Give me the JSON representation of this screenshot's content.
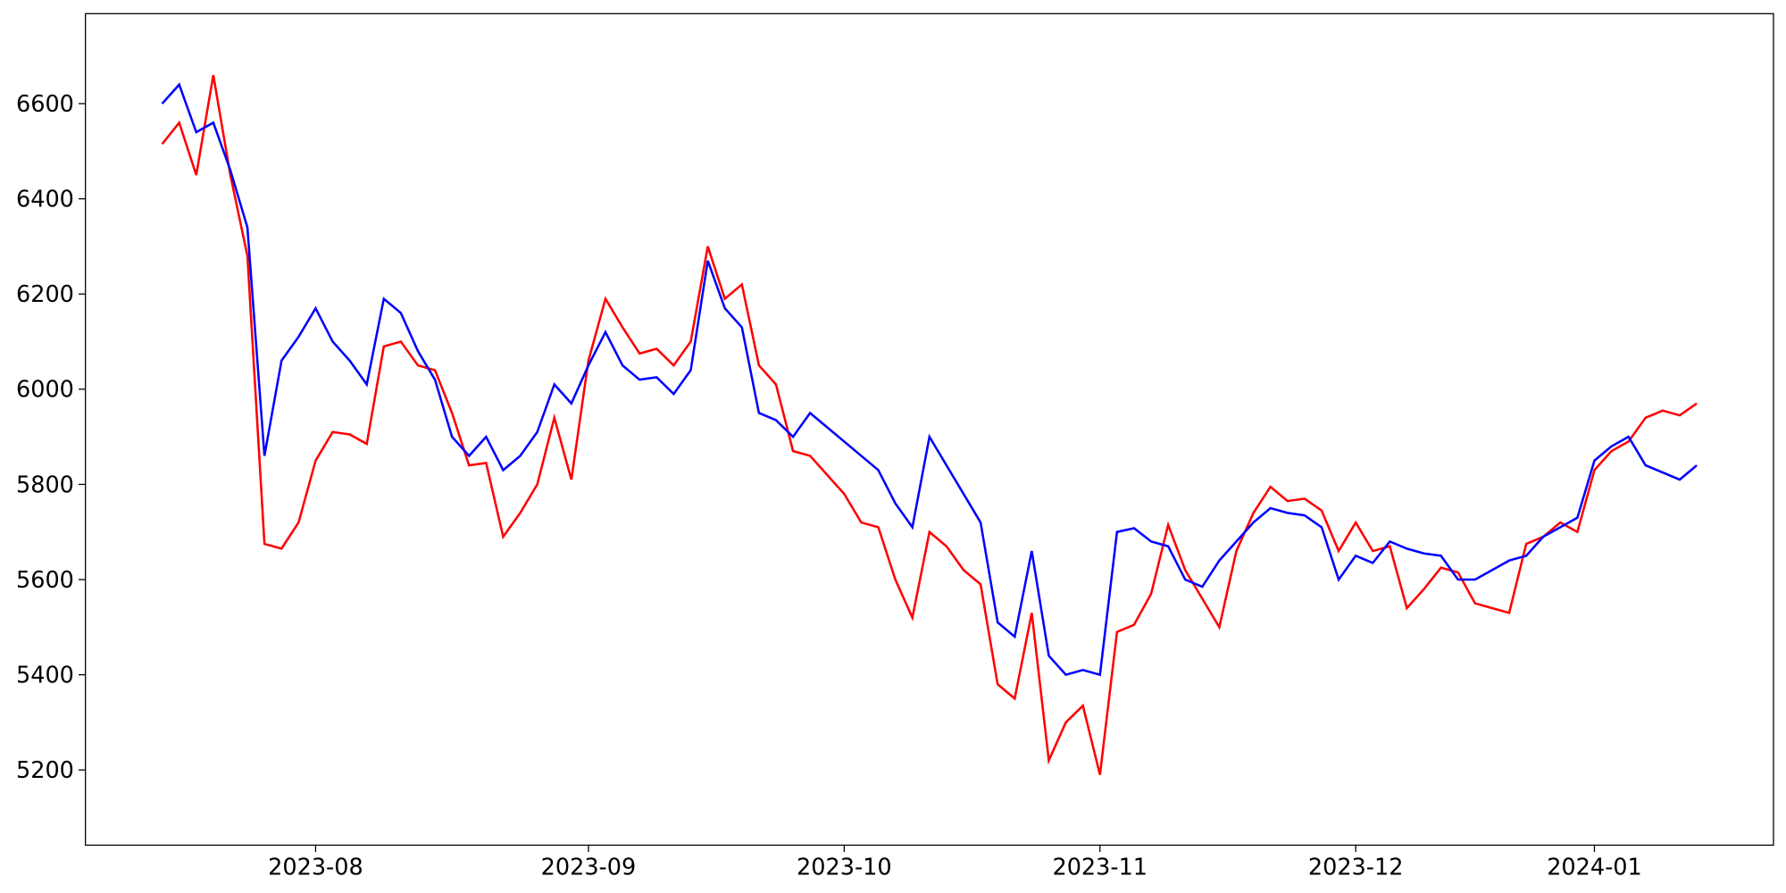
{
  "chart_data": {
    "type": "line",
    "categories": [
      null,
      null,
      null,
      null,
      null,
      null,
      null,
      null,
      null,
      "2023-08",
      null,
      null,
      null,
      null,
      null,
      null,
      null,
      null,
      null,
      null,
      null,
      null,
      null,
      null,
      null,
      "2023-09",
      null,
      null,
      null,
      null,
      null,
      null,
      null,
      null,
      null,
      null,
      null,
      null,
      null,
      null,
      "2023-10",
      null,
      null,
      null,
      null,
      null,
      null,
      null,
      null,
      null,
      null,
      null,
      null,
      null,
      null,
      "2023-11",
      null,
      null,
      null,
      null,
      null,
      null,
      null,
      null,
      null,
      null,
      null,
      null,
      null,
      null,
      "2023-12",
      null,
      null,
      null,
      null,
      null,
      null,
      null,
      null,
      null,
      null,
      null,
      null,
      null,
      "2024-01",
      null,
      null,
      null,
      null,
      null,
      null
    ],
    "series": [
      {
        "color": "#ff0000",
        "values": [
          6515,
          6560,
          6450,
          6660,
          6450,
          6280,
          5675,
          5665,
          5720,
          5850,
          5910,
          5905,
          5885,
          6090,
          6100,
          6050,
          6040,
          5950,
          5840,
          5845,
          5690,
          5740,
          5800,
          5940,
          5810,
          6060,
          6190,
          6130,
          6075,
          6085,
          6050,
          6100,
          6300,
          6190,
          6220,
          6050,
          6010,
          5870,
          5860,
          5820,
          5780,
          5720,
          5710,
          5600,
          5520,
          5700,
          5670,
          5620,
          5590,
          5380,
          5350,
          5530,
          5220,
          5300,
          5335,
          5190,
          5490,
          5505,
          5570,
          5715,
          5620,
          5560,
          5500,
          5660,
          5740,
          5795,
          5765,
          5770,
          5745,
          5660,
          5720,
          5660,
          5670,
          5540,
          5580,
          5625,
          5615,
          5550,
          5540,
          5530,
          5675,
          5690,
          5720,
          5700,
          5830,
          5870,
          5890,
          5940,
          5955,
          5945,
          5970
        ]
      },
      {
        "color": "#0000ff",
        "values": [
          6600,
          6640,
          6540,
          6560,
          6460,
          6340,
          5860,
          6060,
          6110,
          6170,
          6100,
          6060,
          6010,
          6190,
          6160,
          6080,
          6020,
          5900,
          5860,
          5900,
          5830,
          5860,
          5910,
          6010,
          5970,
          6050,
          6120,
          6050,
          6020,
          6025,
          5990,
          6040,
          6270,
          6170,
          6130,
          5950,
          5935,
          5900,
          5950,
          5920,
          5890,
          5860,
          5830,
          5760,
          5710,
          5900,
          5840,
          5780,
          5720,
          5510,
          5480,
          5660,
          5440,
          5400,
          5410,
          5400,
          5700,
          5708,
          5680,
          5670,
          5600,
          5585,
          5640,
          5680,
          5720,
          5750,
          5740,
          5735,
          5710,
          5600,
          5650,
          5635,
          5680,
          5665,
          5655,
          5650,
          5600,
          5600,
          5620,
          5640,
          5650,
          5690,
          5710,
          5730,
          5850,
          5880,
          5900,
          5840,
          5825,
          5810,
          5840
        ]
      }
    ],
    "ylim": [
      5042,
      6789
    ],
    "yticks": [
      5200,
      5400,
      5600,
      5800,
      6000,
      6200,
      6400,
      6600
    ]
  }
}
